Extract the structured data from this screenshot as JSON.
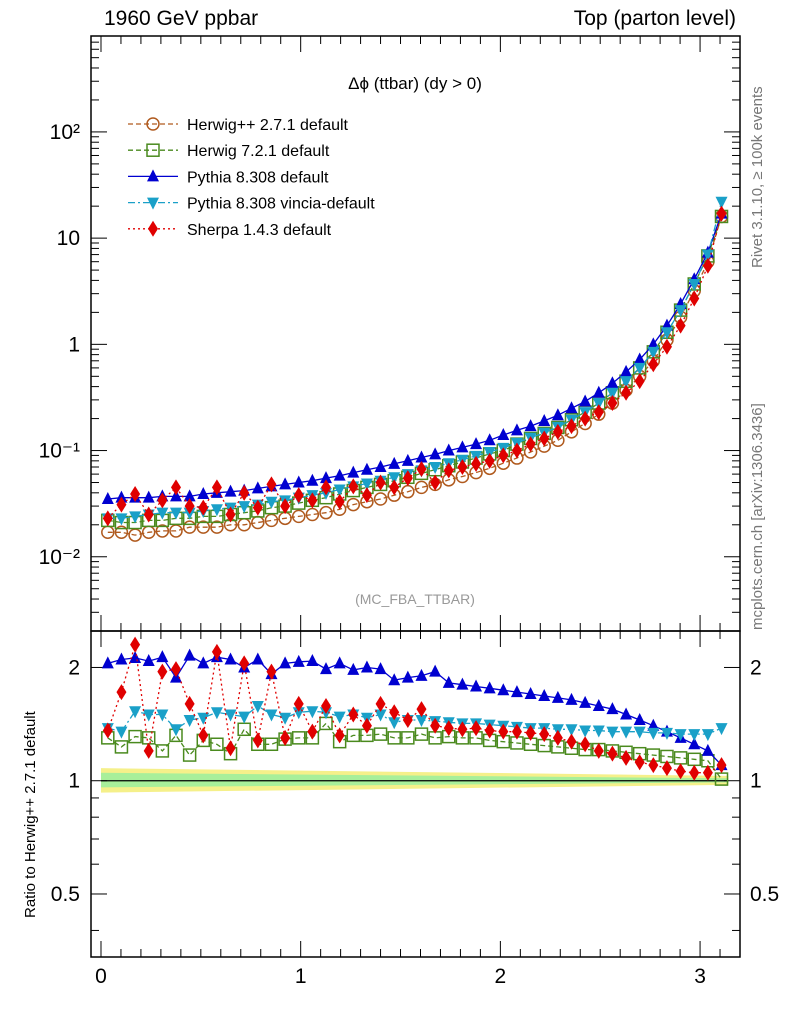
{
  "header": {
    "left": "1960 GeV ppbar",
    "right": "Top (parton level)"
  },
  "side_labels": {
    "upper": "Rivet 3.1.10, ≥ 100k events",
    "lower": "mcplots.cern.ch [arXiv:1306.3436]"
  },
  "chart_data": [
    {
      "type": "scatter",
      "title": "Δϕ (ttbar) (dy > 0)",
      "watermark": "(MC_FBA_TTBAR)",
      "yscale": "log",
      "xlim": [
        -0.05,
        3.2
      ],
      "ylim": [
        0.002,
        800
      ],
      "ytick_labels": [
        "10⁻²",
        "10⁻¹",
        "1",
        "10",
        "10²"
      ],
      "ytick_values": [
        0.01,
        0.1,
        1,
        10,
        100
      ],
      "legend_position": "top-left",
      "series": [
        {
          "name": "Herwig++ 2.7.1 default",
          "color": "#b05a1e",
          "marker": "open-circle",
          "line": "dashed",
          "values": [
            0.017,
            0.017,
            0.016,
            0.017,
            0.0175,
            0.0175,
            0.019,
            0.019,
            0.019,
            0.02,
            0.02,
            0.021,
            0.022,
            0.023,
            0.024,
            0.025,
            0.026,
            0.028,
            0.031,
            0.033,
            0.035,
            0.038,
            0.041,
            0.045,
            0.048,
            0.053,
            0.057,
            0.062,
            0.068,
            0.076,
            0.085,
            0.097,
            0.11,
            0.125,
            0.15,
            0.18,
            0.22,
            0.28,
            0.37,
            0.5,
            0.7,
            1.1,
            1.8,
            3.2,
            6.0,
            16
          ]
        },
        {
          "name": "Herwig 7.2.1 default",
          "color": "#4a8a1e",
          "marker": "open-square",
          "line": "dashed",
          "values": [
            0.022,
            0.021,
            0.021,
            0.022,
            0.022,
            0.023,
            0.023,
            0.024,
            0.024,
            0.025,
            0.026,
            0.027,
            0.029,
            0.03,
            0.032,
            0.034,
            0.036,
            0.039,
            0.042,
            0.045,
            0.048,
            0.052,
            0.056,
            0.061,
            0.066,
            0.072,
            0.078,
            0.085,
            0.093,
            0.1,
            0.115,
            0.13,
            0.145,
            0.165,
            0.195,
            0.23,
            0.28,
            0.35,
            0.45,
            0.6,
            0.85,
            1.3,
            2.1,
            3.7,
            6.8,
            16
          ]
        },
        {
          "name": "Pythia 8.308 default",
          "color": "#0000d0",
          "marker": "filled-triangle-up",
          "line": "solid",
          "values": [
            0.035,
            0.036,
            0.036,
            0.036,
            0.037,
            0.037,
            0.037,
            0.039,
            0.04,
            0.041,
            0.042,
            0.044,
            0.046,
            0.048,
            0.05,
            0.052,
            0.055,
            0.058,
            0.062,
            0.066,
            0.07,
            0.075,
            0.08,
            0.086,
            0.092,
            0.1,
            0.107,
            0.115,
            0.125,
            0.14,
            0.155,
            0.17,
            0.19,
            0.215,
            0.25,
            0.29,
            0.35,
            0.43,
            0.55,
            0.72,
            1.0,
            1.5,
            2.4,
            4.1,
            7.3,
            17
          ]
        },
        {
          "name": "Pythia 8.308 vincia-default",
          "color": "#1aa0c8",
          "marker": "filled-triangle-down",
          "line": "dashdot",
          "values": [
            0.023,
            0.023,
            0.024,
            0.025,
            0.026,
            0.026,
            0.026,
            0.027,
            0.028,
            0.029,
            0.03,
            0.031,
            0.033,
            0.034,
            0.036,
            0.038,
            0.04,
            0.043,
            0.046,
            0.049,
            0.052,
            0.056,
            0.06,
            0.065,
            0.07,
            0.076,
            0.082,
            0.089,
            0.097,
            0.106,
            0.118,
            0.132,
            0.147,
            0.167,
            0.195,
            0.23,
            0.28,
            0.35,
            0.45,
            0.6,
            0.85,
            1.3,
            2.1,
            3.7,
            7.0,
            22
          ]
        },
        {
          "name": "Sherpa 1.4.3 default",
          "color": "#e00000",
          "marker": "filled-diamond",
          "line": "dotted",
          "values": [
            0.023,
            0.031,
            0.039,
            0.025,
            0.034,
            0.045,
            0.03,
            0.029,
            0.045,
            0.025,
            0.04,
            0.029,
            0.048,
            0.03,
            0.038,
            0.034,
            0.045,
            0.033,
            0.046,
            0.038,
            0.05,
            0.045,
            0.055,
            0.067,
            0.05,
            0.065,
            0.07,
            0.075,
            0.08,
            0.09,
            0.1,
            0.115,
            0.13,
            0.15,
            0.17,
            0.2,
            0.23,
            0.28,
            0.35,
            0.45,
            0.65,
            0.95,
            1.5,
            2.7,
            5.5,
            17
          ]
        }
      ]
    },
    {
      "type": "scatter",
      "ylabel": "Ratio to Herwig++ 2.7.1 default",
      "xlim": [
        -0.05,
        3.2
      ],
      "ylim": [
        0.34,
        2.5
      ],
      "xtick_labels": [
        "0",
        "1",
        "2",
        "3"
      ],
      "xtick_values": [
        0,
        1,
        2,
        3
      ],
      "ytick_labels": [
        "0.5",
        "1",
        "2"
      ],
      "ytick_values": [
        0.5,
        1,
        2
      ],
      "ratio_series": [
        {
          "name": "Herwig 7.2.1 default",
          "values": [
            1.3,
            1.23,
            1.31,
            1.3,
            1.2,
            1.32,
            1.17,
            1.28,
            1.25,
            1.18,
            1.37,
            1.25,
            1.25,
            1.29,
            1.3,
            1.3,
            1.42,
            1.27,
            1.32,
            1.32,
            1.33,
            1.3,
            1.3,
            1.33,
            1.3,
            1.31,
            1.3,
            1.3,
            1.28,
            1.27,
            1.26,
            1.25,
            1.24,
            1.23,
            1.22,
            1.21,
            1.21,
            1.2,
            1.19,
            1.18,
            1.17,
            1.16,
            1.15,
            1.14,
            1.13,
            1.01
          ]
        },
        {
          "name": "Pythia 8.308 default",
          "values": [
            2.05,
            2.1,
            2.12,
            2.08,
            2.13,
            1.88,
            2.15,
            2.05,
            2.13,
            2.1,
            2.0,
            2.1,
            1.92,
            2.05,
            2.07,
            2.08,
            1.98,
            2.05,
            1.97,
            2.0,
            1.98,
            1.85,
            1.88,
            1.9,
            1.95,
            1.82,
            1.8,
            1.78,
            1.76,
            1.74,
            1.72,
            1.7,
            1.68,
            1.66,
            1.64,
            1.61,
            1.58,
            1.55,
            1.5,
            1.45,
            1.4,
            1.35,
            1.3,
            1.25,
            1.2,
            1.1
          ]
        },
        {
          "name": "Pythia 8.308 vincia-default",
          "values": [
            1.38,
            1.35,
            1.53,
            1.5,
            1.5,
            1.37,
            1.45,
            1.47,
            1.52,
            1.5,
            1.48,
            1.58,
            1.5,
            1.47,
            1.52,
            1.53,
            1.52,
            1.48,
            1.5,
            1.47,
            1.5,
            1.43,
            1.45,
            1.45,
            1.44,
            1.43,
            1.42,
            1.42,
            1.41,
            1.4,
            1.39,
            1.38,
            1.38,
            1.37,
            1.37,
            1.36,
            1.36,
            1.35,
            1.35,
            1.35,
            1.34,
            1.34,
            1.33,
            1.33,
            1.33,
            1.38
          ]
        },
        {
          "name": "Sherpa 1.4.3 default",
          "values": [
            1.36,
            1.72,
            2.3,
            1.2,
            1.95,
            1.98,
            1.6,
            1.32,
            2.2,
            1.22,
            2.05,
            1.28,
            1.95,
            1.3,
            1.6,
            1.35,
            1.58,
            1.32,
            1.5,
            1.4,
            1.6,
            1.52,
            1.45,
            1.55,
            1.4,
            1.38,
            1.37,
            1.38,
            1.36,
            1.35,
            1.35,
            1.34,
            1.33,
            1.3,
            1.27,
            1.25,
            1.2,
            1.18,
            1.15,
            1.12,
            1.1,
            1.08,
            1.06,
            1.05,
            1.05,
            1.1
          ]
        }
      ]
    }
  ]
}
